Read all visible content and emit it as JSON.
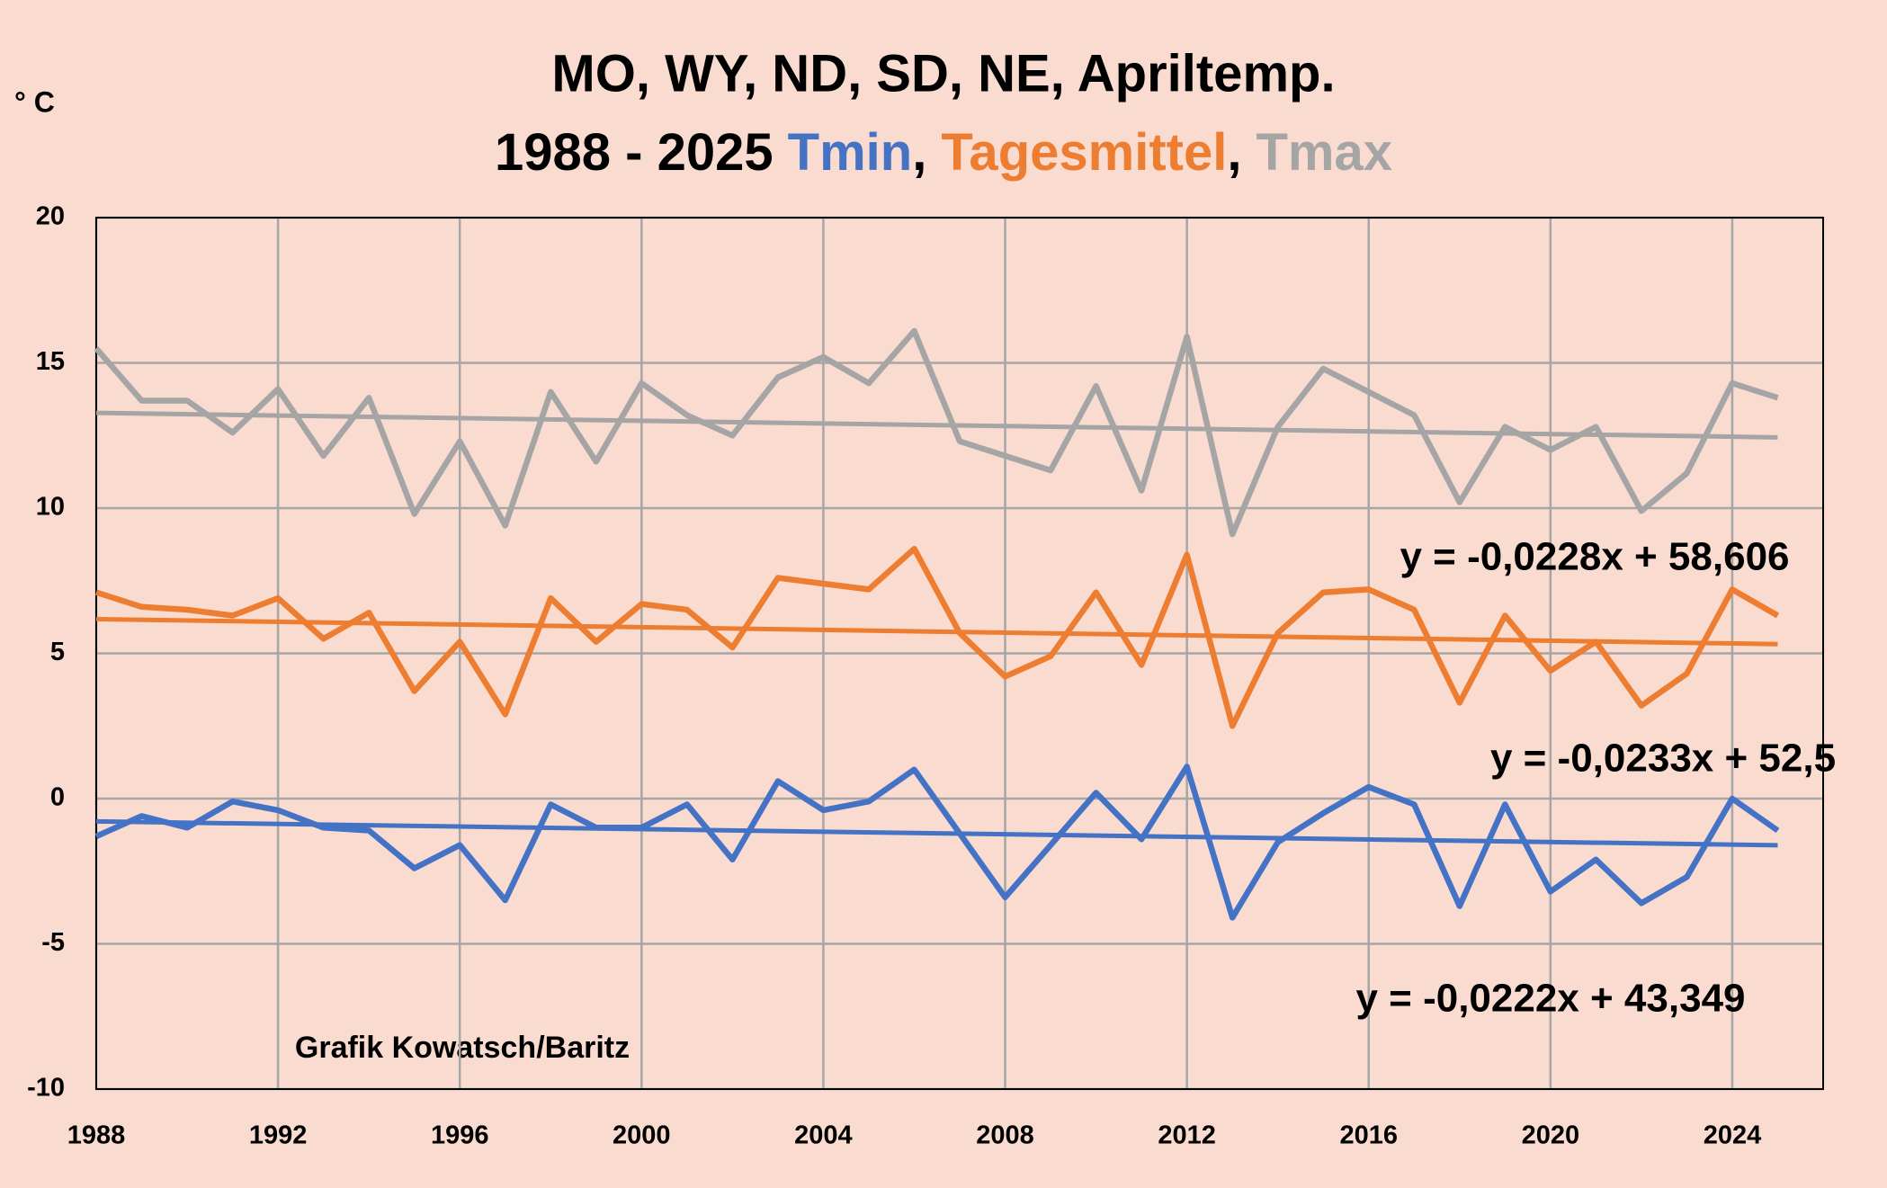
{
  "chart_data": {
    "type": "line",
    "title": "MO, WY, ND, SD, NE, Apriltemp.",
    "subtitle": "1988 - 2025",
    "subtitle_separator": ",",
    "ylabel": "° C",
    "annotation": "Grafik Kowatsch/Baritz",
    "x": [
      1988,
      1989,
      1990,
      1991,
      1992,
      1993,
      1994,
      1995,
      1996,
      1997,
      1998,
      1999,
      2000,
      2001,
      2002,
      2003,
      2004,
      2005,
      2006,
      2007,
      2008,
      2009,
      2010,
      2011,
      2012,
      2013,
      2014,
      2015,
      2016,
      2017,
      2018,
      2019,
      2020,
      2021,
      2022,
      2023,
      2024,
      2025
    ],
    "series": [
      {
        "name": "Tmin",
        "color": "#4472c4",
        "values": [
          -1.3,
          -0.6,
          -1.0,
          -0.1,
          -0.4,
          -1.0,
          -1.1,
          -2.4,
          -1.6,
          -3.5,
          -0.2,
          -1.0,
          -1.0,
          -0.2,
          -2.1,
          0.6,
          -0.4,
          -0.1,
          1.0,
          -1.2,
          -3.4,
          -1.6,
          0.2,
          -1.4,
          1.1,
          -4.1,
          -1.5,
          -0.5,
          0.4,
          -0.2,
          -3.7,
          -0.2,
          -3.2,
          -2.1,
          -3.6,
          -2.7,
          0.0,
          -1.1
        ],
        "trendline": {
          "slope": -0.0222,
          "intercept": 43.349,
          "label": "y = -0,0222x + 43,349",
          "color": "#4472c4"
        }
      },
      {
        "name": "Tagesmittel",
        "color": "#ed7d31",
        "values": [
          7.1,
          6.6,
          6.5,
          6.3,
          6.9,
          5.5,
          6.4,
          3.7,
          5.4,
          2.9,
          6.9,
          5.4,
          6.7,
          6.5,
          5.2,
          7.6,
          7.4,
          7.2,
          8.6,
          5.7,
          4.2,
          4.9,
          7.1,
          4.6,
          8.4,
          2.5,
          5.7,
          7.1,
          7.2,
          6.5,
          3.3,
          6.3,
          4.4,
          5.4,
          3.2,
          4.3,
          7.2,
          6.3
        ],
        "trendline": {
          "slope": -0.0233,
          "intercept": 52.5,
          "label": "y = -0,0233x + 52,5",
          "color": "#ed7d31"
        }
      },
      {
        "name": "Tmax",
        "color": "#a5a5a5",
        "values": [
          15.5,
          13.7,
          13.7,
          12.6,
          14.1,
          11.8,
          13.8,
          9.8,
          12.3,
          9.4,
          14.0,
          11.6,
          14.3,
          13.2,
          12.5,
          14.5,
          15.2,
          14.3,
          16.1,
          12.3,
          11.8,
          11.3,
          14.2,
          10.6,
          15.9,
          9.1,
          12.8,
          14.8,
          14.0,
          13.2,
          10.2,
          12.8,
          12.0,
          12.8,
          9.9,
          11.2,
          14.3,
          13.8
        ],
        "trendline": {
          "slope": -0.0228,
          "intercept": 58.606,
          "label": "y = -0,0228x + 58,606",
          "color": "#7f7f7f"
        }
      }
    ],
    "xlim": [
      1988,
      2026
    ],
    "xticks": [
      1988,
      1992,
      1996,
      2000,
      2004,
      2008,
      2012,
      2016,
      2020,
      2024
    ],
    "ylim": [
      -10,
      20
    ],
    "yticks": [
      -10,
      -5,
      0,
      5,
      10,
      15,
      20
    ],
    "grid": true
  }
}
